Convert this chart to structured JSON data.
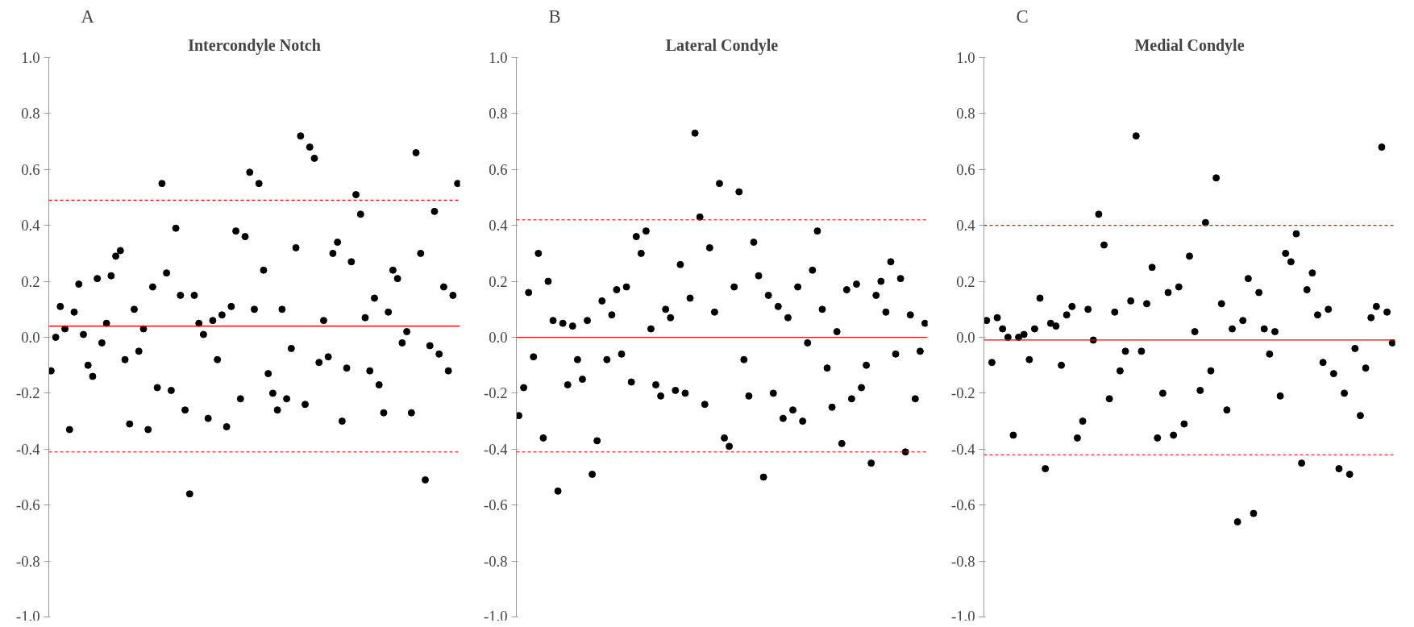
{
  "chart_data": [
    {
      "type": "scatter",
      "title": "Intercondyle Notch",
      "annotations": [
        "A"
      ],
      "marker": "circle",
      "grid": false,
      "tick_labels": "y",
      "categories": [
        null,
        null,
        null,
        null,
        null,
        null,
        null,
        null,
        null,
        null,
        null,
        null,
        null,
        null,
        null,
        null,
        null,
        null,
        null,
        null,
        null,
        null,
        null,
        null,
        null,
        null,
        null,
        null,
        null,
        null,
        null,
        null,
        null,
        null,
        null,
        null,
        null,
        null,
        null,
        null,
        null,
        null,
        null,
        null,
        null,
        null,
        null,
        null,
        null,
        null,
        null,
        null,
        null,
        null,
        null,
        null,
        null,
        null,
        null,
        null,
        null,
        null,
        null,
        null,
        null,
        null,
        null,
        null,
        null,
        null,
        null,
        null,
        null,
        null,
        null,
        null,
        null,
        null,
        null,
        null,
        null,
        null,
        null,
        null,
        null,
        null,
        null,
        null,
        null
      ],
      "series": [
        {
          "color": "#000000",
          "values": [
            -0.12,
            0.0,
            0.11,
            0.03,
            -0.33,
            0.09,
            0.19,
            0.01,
            -0.1,
            -0.14,
            0.21,
            -0.02,
            0.05,
            0.22,
            0.29,
            0.31,
            -0.08,
            -0.31,
            0.1,
            -0.05,
            0.03,
            -0.33,
            0.18,
            -0.18,
            0.55,
            0.23,
            -0.19,
            0.39,
            0.15,
            -0.26,
            -0.56,
            0.15,
            0.05,
            0.01,
            -0.29,
            0.06,
            -0.08,
            0.08,
            -0.32,
            0.11,
            0.38,
            -0.22,
            0.36,
            0.59,
            0.1,
            0.55,
            0.24,
            -0.13,
            -0.2,
            -0.26,
            0.1,
            -0.22,
            -0.04,
            0.32,
            0.72,
            -0.24,
            0.68,
            0.64,
            -0.09,
            0.06,
            -0.07,
            0.3,
            0.34,
            -0.3,
            -0.11,
            0.27,
            0.51,
            0.44,
            0.07,
            -0.12,
            0.14,
            -0.17,
            -0.27,
            0.09,
            0.24,
            0.21,
            -0.02,
            0.02,
            -0.27,
            0.66,
            0.3,
            -0.51,
            -0.03,
            0.45,
            -0.06,
            0.18,
            -0.12,
            0.15,
            0.55
          ]
        }
      ],
      "ylim": [
        -1.0,
        1.0
      ],
      "yticks": [
        {
          "value": -1.0,
          "label": "-1.0"
        },
        {
          "value": -0.8,
          "label": "-0.8"
        },
        {
          "value": -0.6,
          "label": "-0.6"
        },
        {
          "value": -0.4,
          "label": "-0.4"
        },
        {
          "value": -0.2,
          "label": "-0.2"
        },
        {
          "value": 0.0,
          "label": "0.0"
        },
        {
          "value": 0.2,
          "label": "0.2"
        },
        {
          "value": 0.4,
          "label": "0.4"
        },
        {
          "value": 0.6,
          "label": "0.6"
        },
        {
          "value": 0.8,
          "label": "0.8"
        },
        {
          "value": 1.0,
          "label": "1.0"
        }
      ],
      "ref_lines": [
        {
          "axis": "y",
          "value": 0.04,
          "color": "#ff0000",
          "line_style": "solid"
        },
        {
          "axis": "y",
          "value": 0.49,
          "color": "#ff0000",
          "line_style": "dashed"
        },
        {
          "axis": "y",
          "value": -0.41,
          "color": "#ff0000",
          "line_style": "dashed"
        }
      ]
    },
    {
      "type": "scatter",
      "title": "Lateral Condyle",
      "annotations": [
        "B"
      ],
      "marker": "circle",
      "grid": false,
      "tick_labels": "y",
      "categories": [
        null,
        null,
        null,
        null,
        null,
        null,
        null,
        null,
        null,
        null,
        null,
        null,
        null,
        null,
        null,
        null,
        null,
        null,
        null,
        null,
        null,
        null,
        null,
        null,
        null,
        null,
        null,
        null,
        null,
        null,
        null,
        null,
        null,
        null,
        null,
        null,
        null,
        null,
        null,
        null,
        null,
        null,
        null,
        null,
        null,
        null,
        null,
        null,
        null,
        null,
        null,
        null,
        null,
        null,
        null,
        null,
        null,
        null,
        null,
        null,
        null,
        null,
        null,
        null,
        null,
        null,
        null,
        null,
        null,
        null,
        null,
        null,
        null,
        null,
        null,
        null,
        null,
        null,
        null,
        null,
        null,
        null,
        null,
        null
      ],
      "series": [
        {
          "color": "#000000",
          "values": [
            -0.28,
            -0.18,
            0.16,
            -0.07,
            0.3,
            -0.36,
            0.2,
            0.06,
            -0.55,
            0.05,
            -0.17,
            0.04,
            -0.08,
            -0.15,
            0.06,
            -0.49,
            -0.37,
            0.13,
            -0.08,
            0.08,
            0.17,
            -0.06,
            0.18,
            -0.16,
            0.36,
            0.3,
            0.38,
            0.03,
            -0.17,
            -0.21,
            0.1,
            0.07,
            -0.19,
            0.26,
            -0.2,
            0.14,
            0.73,
            0.43,
            -0.24,
            0.32,
            0.09,
            0.55,
            -0.36,
            -0.39,
            0.18,
            0.52,
            -0.08,
            -0.21,
            0.34,
            0.22,
            -0.5,
            0.15,
            -0.2,
            0.11,
            -0.29,
            0.07,
            -0.26,
            0.18,
            -0.3,
            -0.02,
            0.24,
            0.38,
            0.1,
            -0.11,
            -0.25,
            0.02,
            -0.38,
            0.17,
            -0.22,
            0.19,
            -0.18,
            -0.1,
            -0.45,
            0.15,
            0.2,
            0.09,
            0.27,
            -0.06,
            0.21,
            -0.41,
            0.08,
            -0.22,
            -0.05,
            0.05
          ]
        }
      ],
      "ylim": [
        -1.0,
        1.0
      ],
      "yticks": [
        {
          "value": -1.0,
          "label": "-1.0"
        },
        {
          "value": -0.8,
          "label": "-0.8"
        },
        {
          "value": -0.6,
          "label": "-0.6"
        },
        {
          "value": -0.4,
          "label": "-0.4"
        },
        {
          "value": -0.2,
          "label": "-0.2"
        },
        {
          "value": 0.0,
          "label": "0.0"
        },
        {
          "value": 0.2,
          "label": "0.2"
        },
        {
          "value": 0.4,
          "label": "0.4"
        },
        {
          "value": 0.6,
          "label": "0.6"
        },
        {
          "value": 0.8,
          "label": "0.8"
        },
        {
          "value": 1.0,
          "label": "1.0"
        }
      ],
      "ref_lines": [
        {
          "axis": "y",
          "value": 0.0,
          "color": "#ff0000",
          "line_style": "solid"
        },
        {
          "axis": "y",
          "value": 0.42,
          "color": "#ff0000",
          "line_style": "dashed"
        },
        {
          "axis": "y",
          "value": -0.41,
          "color": "#ff0000",
          "line_style": "dashed"
        }
      ]
    },
    {
      "type": "scatter",
      "title": "Medial Condyle",
      "annotations": [
        "C"
      ],
      "marker": "circle",
      "grid": false,
      "tick_labels": "y",
      "categories": [
        null,
        null,
        null,
        null,
        null,
        null,
        null,
        null,
        null,
        null,
        null,
        null,
        null,
        null,
        null,
        null,
        null,
        null,
        null,
        null,
        null,
        null,
        null,
        null,
        null,
        null,
        null,
        null,
        null,
        null,
        null,
        null,
        null,
        null,
        null,
        null,
        null,
        null,
        null,
        null,
        null,
        null,
        null,
        null,
        null,
        null,
        null,
        null,
        null,
        null,
        null,
        null,
        null,
        null,
        null,
        null,
        null,
        null,
        null,
        null,
        null,
        null,
        null,
        null,
        null,
        null,
        null,
        null,
        null,
        null,
        null,
        null,
        null,
        null,
        null,
        null,
        null
      ],
      "series": [
        {
          "color": "#000000",
          "values": [
            0.06,
            -0.09,
            0.07,
            0.03,
            0.0,
            -0.35,
            0.0,
            0.01,
            -0.08,
            0.03,
            0.14,
            -0.47,
            0.05,
            0.04,
            -0.1,
            0.08,
            0.11,
            -0.36,
            -0.3,
            0.1,
            -0.01,
            0.44,
            0.33,
            -0.22,
            0.09,
            -0.12,
            -0.05,
            0.13,
            0.72,
            -0.05,
            0.12,
            0.25,
            -0.36,
            -0.2,
            0.16,
            -0.35,
            0.18,
            -0.31,
            0.29,
            0.02,
            -0.19,
            0.41,
            -0.12,
            0.57,
            0.12,
            -0.26,
            0.03,
            -0.66,
            0.06,
            0.21,
            -0.63,
            0.16,
            0.03,
            -0.06,
            0.02,
            -0.21,
            0.3,
            0.27,
            0.37,
            -0.45,
            0.17,
            0.23,
            0.08,
            -0.09,
            0.1,
            -0.13,
            -0.47,
            -0.2,
            -0.49,
            -0.04,
            -0.28,
            -0.11,
            0.07,
            0.11,
            0.68,
            0.09,
            -0.02
          ]
        }
      ],
      "ylim": [
        -1.0,
        1.0
      ],
      "yticks": [
        {
          "value": -1.0,
          "label": "-1.0"
        },
        {
          "value": -0.8,
          "label": "-0.8"
        },
        {
          "value": -0.6,
          "label": "-0.6"
        },
        {
          "value": -0.4,
          "label": "-0.4"
        },
        {
          "value": -0.2,
          "label": "-0.2"
        },
        {
          "value": 0.0,
          "label": "0.0"
        },
        {
          "value": 0.2,
          "label": "0.2"
        },
        {
          "value": 0.4,
          "label": "0.4"
        },
        {
          "value": 0.6,
          "label": "0.6"
        },
        {
          "value": 0.8,
          "label": "0.8"
        },
        {
          "value": 1.0,
          "label": "1.0"
        }
      ],
      "ref_lines": [
        {
          "axis": "y",
          "value": -0.01,
          "color": "#ff0000",
          "line_style": "solid"
        },
        {
          "axis": "y",
          "value": 0.4,
          "color": "#ff0000",
          "line_style": "dashed"
        },
        {
          "axis": "y",
          "value": -0.42,
          "color": "#ff0000",
          "line_style": "dashed"
        }
      ]
    }
  ]
}
